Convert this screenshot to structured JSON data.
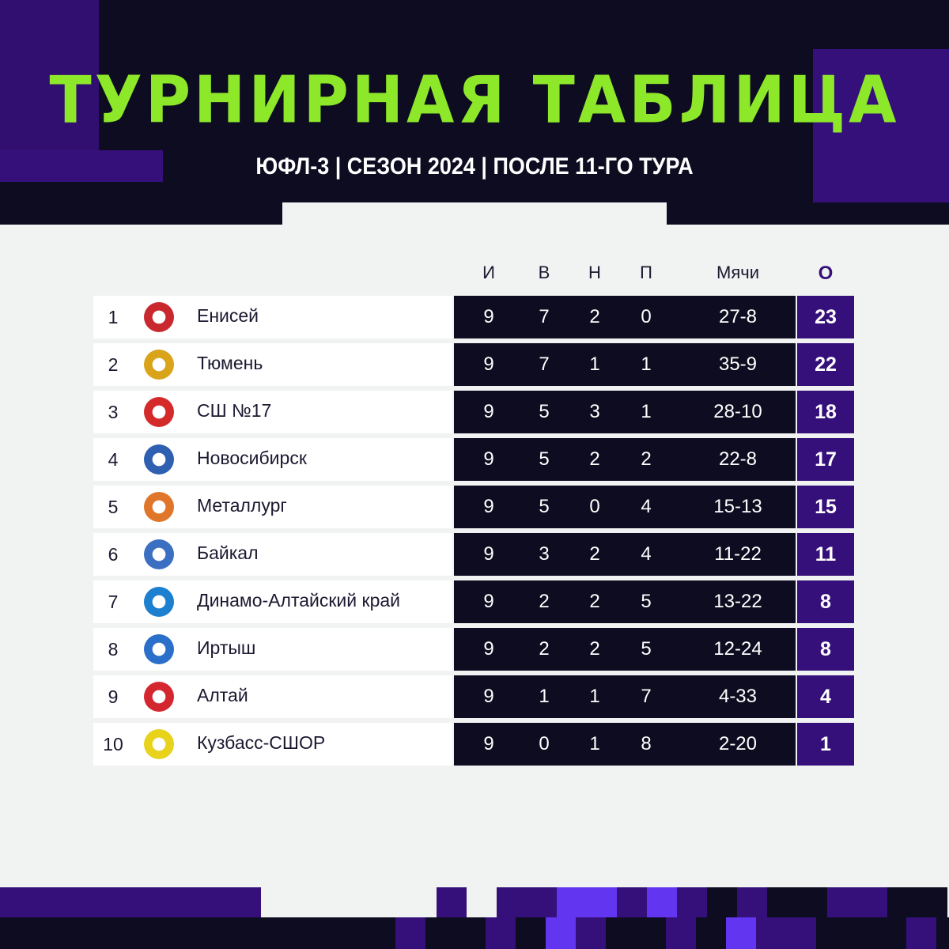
{
  "title": "ТУРНИРНАЯ ТАБЛИЦА",
  "subtitle": "ЮФЛ-3 | СЕЗОН 2024 | ПОСЛЕ 11-ГО ТУРА",
  "colors": {
    "dark": "#0e0c20",
    "purple": "#35107a",
    "bright_purple": "#6235f0",
    "green": "#8ee82a"
  },
  "columns": {
    "played": "И",
    "won": "В",
    "drawn": "Н",
    "lost": "П",
    "goals": "Мячи",
    "points": "О"
  },
  "rows": [
    {
      "pos": "1",
      "team": "Енисей",
      "logo": "#c8282e",
      "p": "9",
      "w": "7",
      "d": "2",
      "l": "0",
      "g": "27-8",
      "pts": "23"
    },
    {
      "pos": "2",
      "team": "Тюмень",
      "logo": "#d9a31a",
      "p": "9",
      "w": "7",
      "d": "1",
      "l": "1",
      "g": "35-9",
      "pts": "22"
    },
    {
      "pos": "3",
      "team": "СШ №17",
      "logo": "#d42a2a",
      "p": "9",
      "w": "5",
      "d": "3",
      "l": "1",
      "g": "28-10",
      "pts": "18"
    },
    {
      "pos": "4",
      "team": "Новосибирск",
      "logo": "#2e5fb0",
      "p": "9",
      "w": "5",
      "d": "2",
      "l": "2",
      "g": "22-8",
      "pts": "17"
    },
    {
      "pos": "5",
      "team": "Металлург",
      "logo": "#e0762a",
      "p": "9",
      "w": "5",
      "d": "0",
      "l": "4",
      "g": "15-13",
      "pts": "15"
    },
    {
      "pos": "6",
      "team": "Байкал",
      "logo": "#3a6fc2",
      "p": "9",
      "w": "3",
      "d": "2",
      "l": "4",
      "g": "11-22",
      "pts": "11"
    },
    {
      "pos": "7",
      "team": "Динамо-Алтайский край",
      "logo": "#1d7fd0",
      "p": "9",
      "w": "2",
      "d": "2",
      "l": "5",
      "g": "13-22",
      "pts": "8"
    },
    {
      "pos": "8",
      "team": "Иртыш",
      "logo": "#2a6fc9",
      "p": "9",
      "w": "2",
      "d": "2",
      "l": "5",
      "g": "12-24",
      "pts": "8"
    },
    {
      "pos": "9",
      "team": "Алтай",
      "logo": "#d3262e",
      "p": "9",
      "w": "1",
      "d": "1",
      "l": "7",
      "g": "4-33",
      "pts": "4"
    },
    {
      "pos": "10",
      "team": "Кузбасс-СШОР",
      "logo": "#e8d21c",
      "p": "9",
      "w": "0",
      "d": "1",
      "l": "8",
      "g": "2-20",
      "pts": "1"
    }
  ]
}
